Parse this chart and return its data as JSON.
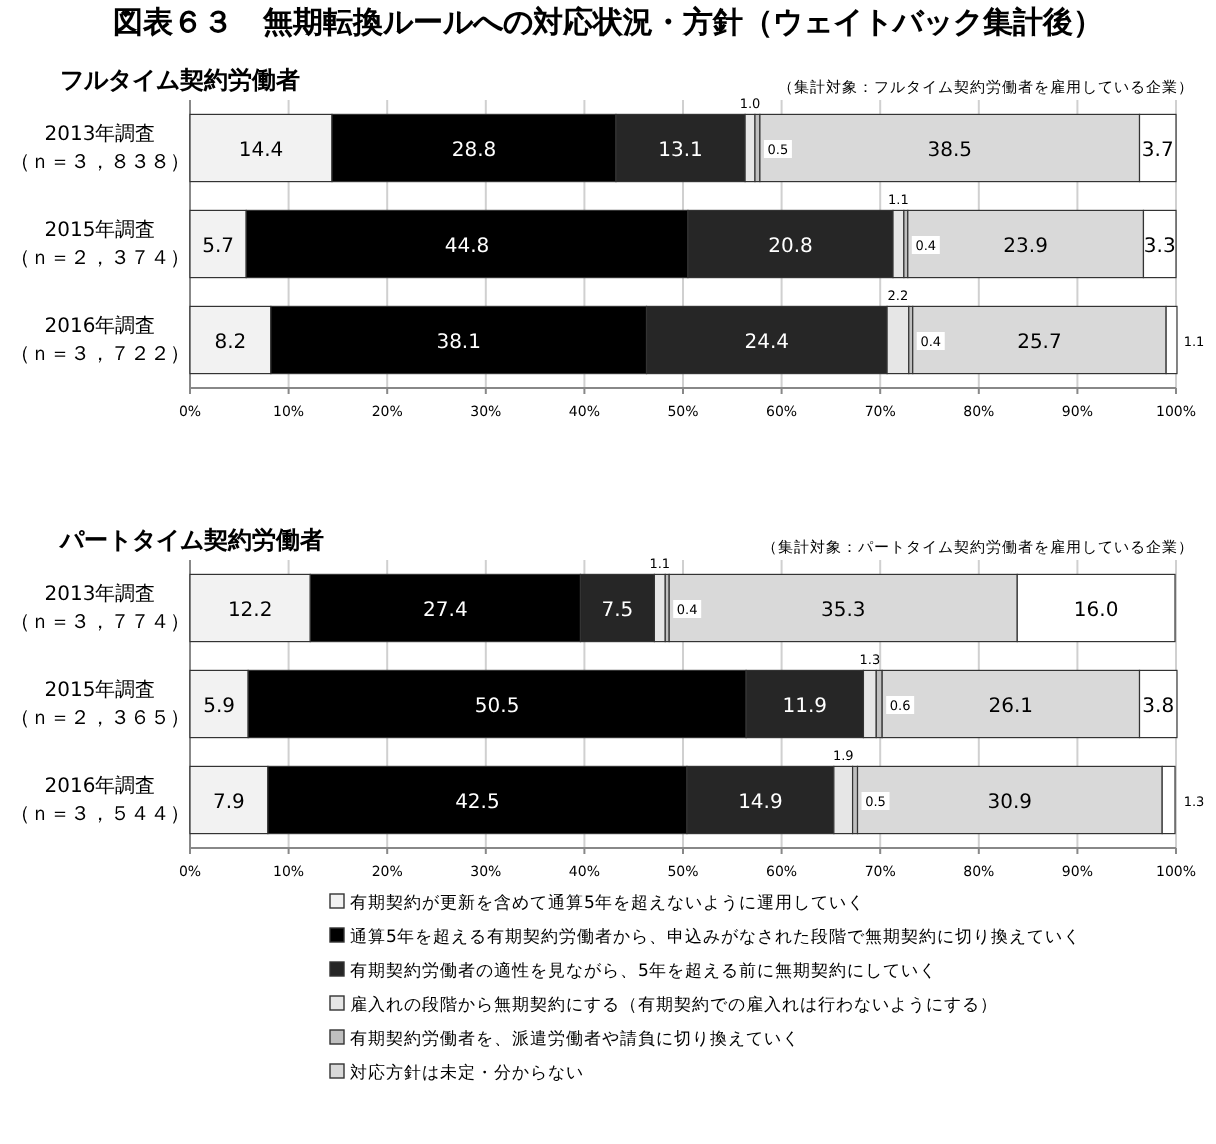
{
  "chart_data": [
    {
      "type": "bar",
      "orientation": "horizontal",
      "stacked": true,
      "grid": "x",
      "title": "フルタイム契約労働者",
      "subtitle": "（集計対象：フルタイム契約労働者を雇用している企業）",
      "annotations": [
        "図表６３　無期転換ルールへの対応状況・方針（ウェイトバック集計後）"
      ],
      "categories": [
        "2013年調査（ｎ＝３，８３８）",
        "2015年調査（ｎ＝２，３７４）",
        "2016年調査（ｎ＝３，７２２）"
      ],
      "xlim": [
        0,
        100
      ],
      "xticks": [
        {
          "value": 0,
          "label": "0%"
        },
        {
          "value": 10,
          "label": "10%"
        },
        {
          "value": 20,
          "label": "20%"
        },
        {
          "value": 30,
          "label": "30%"
        },
        {
          "value": 40,
          "label": "40%"
        },
        {
          "value": 50,
          "label": "50%"
        },
        {
          "value": 60,
          "label": "60%"
        },
        {
          "value": 70,
          "label": "70%"
        },
        {
          "value": 80,
          "label": "80%"
        },
        {
          "value": 90,
          "label": "90%"
        },
        {
          "value": 100,
          "label": "100%"
        }
      ],
      "series": [
        {
          "color": "#f2f2f2",
          "values": [
            14.4,
            5.7,
            8.2
          ],
          "value_labels": [
            "14.4",
            "5.7",
            "8.2"
          ]
        },
        {
          "color": "#000000",
          "values": [
            28.8,
            44.8,
            38.1
          ],
          "value_labels": [
            "28.8",
            "44.8",
            "38.1"
          ]
        },
        {
          "color": "#262626",
          "values": [
            13.1,
            20.8,
            24.4
          ],
          "value_labels": [
            "13.1",
            "20.8",
            "24.4"
          ]
        },
        {
          "color": "#e6e6e6",
          "values": [
            1.0,
            1.1,
            2.2
          ],
          "value_labels": [
            "1.0",
            "1.1",
            "2.2"
          ]
        },
        {
          "color": "#bfbfbf",
          "values": [
            0.5,
            0.4,
            0.4
          ],
          "value_labels": [
            "0.5",
            "0.4",
            "0.4"
          ]
        },
        {
          "color": "#d9d9d9",
          "values": [
            38.5,
            23.9,
            25.7
          ],
          "value_labels": [
            "38.5",
            "23.9",
            "25.7"
          ]
        },
        {
          "color": "#ffffff",
          "values": [
            3.7,
            3.3,
            1.1
          ],
          "value_labels": [
            "3.7",
            "3.3",
            "1.1"
          ]
        }
      ]
    },
    {
      "type": "bar",
      "orientation": "horizontal",
      "stacked": true,
      "grid": "x",
      "legend": "bottom",
      "title": "パートタイム契約労働者",
      "subtitle": "（集計対象：パートタイム契約労働者を雇用している企業）",
      "categories": [
        "2013年調査（ｎ＝３，７７４）",
        "2015年調査（ｎ＝２，３６５）",
        "2016年調査（ｎ＝３，５４４）"
      ],
      "xlim": [
        0,
        100
      ],
      "xticks": [
        {
          "value": 0,
          "label": "0%"
        },
        {
          "value": 10,
          "label": "10%"
        },
        {
          "value": 20,
          "label": "20%"
        },
        {
          "value": 30,
          "label": "30%"
        },
        {
          "value": 40,
          "label": "40%"
        },
        {
          "value": 50,
          "label": "50%"
        },
        {
          "value": 60,
          "label": "60%"
        },
        {
          "value": 70,
          "label": "70%"
        },
        {
          "value": 80,
          "label": "80%"
        },
        {
          "value": 90,
          "label": "90%"
        },
        {
          "value": 100,
          "label": "100%"
        }
      ],
      "series": [
        {
          "name": "有期契約が更新を含めて通算5年を超えないように運用していく",
          "color": "#f2f2f2",
          "values": [
            12.2,
            5.9,
            7.9
          ],
          "value_labels": [
            "12.2",
            "5.9",
            "7.9"
          ]
        },
        {
          "name": "通算5年を超える有期契約労働者から、申込みがなされた段階で無期契約に切り換えていく",
          "color": "#000000",
          "values": [
            27.4,
            50.5,
            42.5
          ],
          "value_labels": [
            "27.4",
            "50.5",
            "42.5"
          ]
        },
        {
          "name": "有期契約労働者の適性を見ながら、5年を超える前に無期契約にしていく",
          "color": "#262626",
          "values": [
            7.5,
            11.9,
            14.9
          ],
          "value_labels": [
            "7.5",
            "11.9",
            "14.9"
          ]
        },
        {
          "name": "雇入れの段階から無期契約にする（有期契約での雇入れは行わないようにする）",
          "color": "#e6e6e6",
          "values": [
            1.1,
            1.3,
            1.9
          ],
          "value_labels": [
            "1.1",
            "1.3",
            "1.9"
          ]
        },
        {
          "name": "有期契約労働者を、派遣労働者や請負に切り換えていく",
          "color": "#bfbfbf",
          "values": [
            0.4,
            0.6,
            0.5
          ],
          "value_labels": [
            "0.4",
            "0.6",
            "0.5"
          ]
        },
        {
          "name": "対応方針は未定・分からない",
          "color": "#d9d9d9",
          "values": [
            35.3,
            26.1,
            30.9
          ],
          "value_labels": [
            "35.3",
            "26.1",
            "30.9"
          ]
        },
        {
          "color": "#ffffff",
          "values": [
            16.0,
            3.8,
            1.3
          ],
          "value_labels": [
            "16.0",
            "3.8",
            "1.3"
          ]
        }
      ]
    }
  ]
}
